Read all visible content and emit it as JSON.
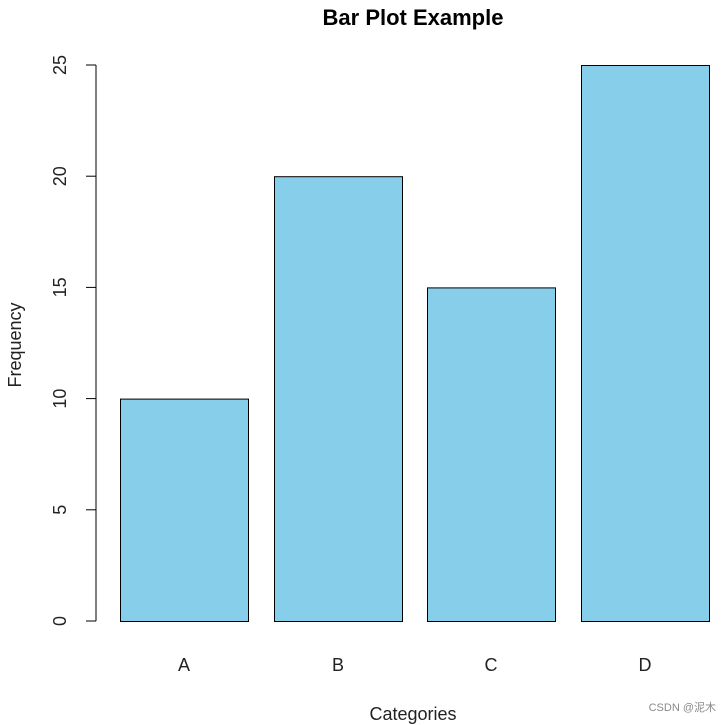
{
  "chart_data": {
    "type": "bar",
    "title": "Bar Plot Example",
    "xlabel": "Categories",
    "ylabel": "Frequency",
    "categories": [
      "A",
      "B",
      "C",
      "D"
    ],
    "values": [
      10,
      20,
      15,
      25
    ],
    "ylim": [
      0,
      25
    ],
    "yticks": [
      0,
      5,
      10,
      15,
      20,
      25
    ],
    "bar_color": "#87CEEB",
    "bar_border": "#000000",
    "grid": false,
    "legend": "none"
  },
  "watermark": "CSDN @泥木"
}
